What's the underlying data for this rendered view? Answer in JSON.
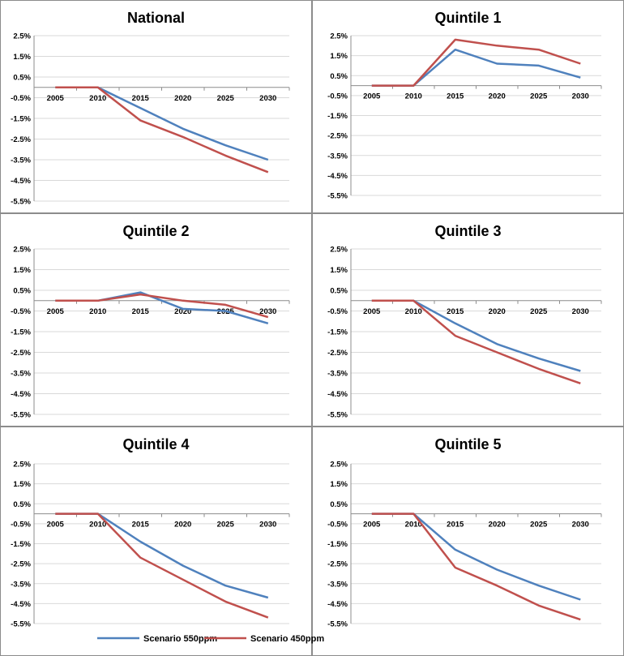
{
  "chart_data": [
    {
      "type": "line",
      "title": "National",
      "x": [
        "2005",
        "2010",
        "2015",
        "2020",
        "2025",
        "2030"
      ],
      "y_ticks": [
        "2.5%",
        "1.5%",
        "0.5%",
        "-0.5%",
        "-1.5%",
        "-2.5%",
        "-3.5%",
        "-4.5%",
        "-5.5%"
      ],
      "ylim": [
        -5.5,
        2.5
      ],
      "series": [
        {
          "name": "Scenario 550ppm",
          "color": "#4f81bd",
          "values": [
            0,
            0,
            -1.0,
            -2.0,
            -2.8,
            -3.5
          ]
        },
        {
          "name": "Scenario 450ppm",
          "color": "#c0504d",
          "values": [
            0,
            0,
            -1.6,
            -2.4,
            -3.3,
            -4.1
          ]
        }
      ]
    },
    {
      "type": "line",
      "title": "Quintile 1",
      "x": [
        "2005",
        "2010",
        "2015",
        "2020",
        "2025",
        "2030"
      ],
      "y_ticks": [
        "2.5%",
        "1.5%",
        "0.5%",
        "-0.5%",
        "-1.5%",
        "-2.5%",
        "-3.5%",
        "-4.5%",
        "-5.5%"
      ],
      "ylim": [
        -5.5,
        2.5
      ],
      "series": [
        {
          "name": "Scenario 550ppm",
          "color": "#4f81bd",
          "values": [
            0,
            0,
            1.8,
            1.1,
            1.0,
            0.4
          ]
        },
        {
          "name": "Scenario 450ppm",
          "color": "#c0504d",
          "values": [
            0,
            0,
            2.3,
            2.0,
            1.8,
            1.1
          ]
        }
      ]
    },
    {
      "type": "line",
      "title": "Quintile 2",
      "x": [
        "2005",
        "2010",
        "2015",
        "2020",
        "2025",
        "2030"
      ],
      "y_ticks": [
        "2.5%",
        "1.5%",
        "0.5%",
        "-0.5%",
        "-1.5%",
        "-2.5%",
        "-3.5%",
        "-4.5%",
        "-5.5%"
      ],
      "ylim": [
        -5.5,
        2.5
      ],
      "series": [
        {
          "name": "Scenario 550ppm",
          "color": "#4f81bd",
          "values": [
            0,
            0,
            0.4,
            -0.4,
            -0.5,
            -1.1
          ]
        },
        {
          "name": "Scenario 450ppm",
          "color": "#c0504d",
          "values": [
            0,
            0,
            0.3,
            0.0,
            -0.2,
            -0.8
          ]
        }
      ]
    },
    {
      "type": "line",
      "title": "Quintile 3",
      "x": [
        "2005",
        "2010",
        "2015",
        "2020",
        "2025",
        "2030"
      ],
      "y_ticks": [
        "2.5%",
        "1.5%",
        "0.5%",
        "-0.5%",
        "-1.5%",
        "-2.5%",
        "-3.5%",
        "-4.5%",
        "-5.5%"
      ],
      "ylim": [
        -5.5,
        2.5
      ],
      "series": [
        {
          "name": "Scenario 550ppm",
          "color": "#4f81bd",
          "values": [
            0,
            0,
            -1.1,
            -2.1,
            -2.8,
            -3.4
          ]
        },
        {
          "name": "Scenario 450ppm",
          "color": "#c0504d",
          "values": [
            0,
            0,
            -1.7,
            -2.5,
            -3.3,
            -4.0
          ]
        }
      ]
    },
    {
      "type": "line",
      "title": "Quintile 4",
      "x": [
        "2005",
        "2010",
        "2015",
        "2020",
        "2025",
        "2030"
      ],
      "y_ticks": [
        "2.5%",
        "1.5%",
        "0.5%",
        "-0.5%",
        "-1.5%",
        "-2.5%",
        "-3.5%",
        "-4.5%",
        "-5.5%"
      ],
      "ylim": [
        -5.5,
        2.5
      ],
      "series": [
        {
          "name": "Scenario 550ppm",
          "color": "#4f81bd",
          "values": [
            0,
            0,
            -1.4,
            -2.6,
            -3.6,
            -4.2
          ]
        },
        {
          "name": "Scenario 450ppm",
          "color": "#c0504d",
          "values": [
            0,
            0,
            -2.2,
            -3.3,
            -4.4,
            -5.2
          ]
        }
      ]
    },
    {
      "type": "line",
      "title": "Quintile 5",
      "x": [
        "2005",
        "2010",
        "2015",
        "2020",
        "2025",
        "2030"
      ],
      "y_ticks": [
        "2.5%",
        "1.5%",
        "0.5%",
        "-0.5%",
        "-1.5%",
        "-2.5%",
        "-3.5%",
        "-4.5%",
        "-5.5%"
      ],
      "ylim": [
        -5.5,
        2.5
      ],
      "series": [
        {
          "name": "Scenario 550ppm",
          "color": "#4f81bd",
          "values": [
            0,
            0,
            -1.8,
            -2.8,
            -3.6,
            -4.3
          ]
        },
        {
          "name": "Scenario 450ppm",
          "color": "#c0504d",
          "values": [
            0,
            0,
            -2.7,
            -3.6,
            -4.6,
            -5.3
          ]
        }
      ]
    }
  ],
  "legend": {
    "position": "bottom",
    "items": [
      {
        "label": "Scenario 550ppm",
        "color": "#4f81bd"
      },
      {
        "label": "Scenario 450ppm",
        "color": "#c0504d"
      }
    ]
  }
}
